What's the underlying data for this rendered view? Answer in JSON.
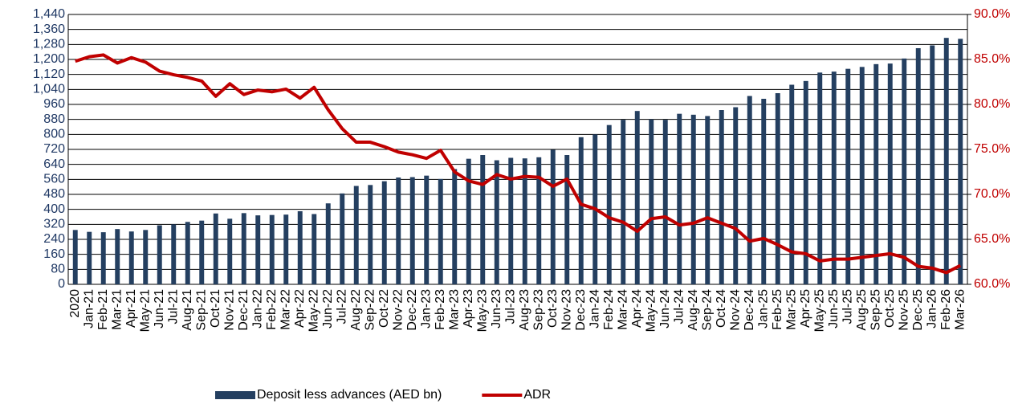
{
  "chart_data": {
    "type": "bar-line",
    "categories": [
      "2020",
      "Jan-21",
      "Feb-21",
      "Mar-21",
      "Apr-21",
      "May-21",
      "Jun-21",
      "Jul-21",
      "Aug-21",
      "Sep-21",
      "Oct-21",
      "Nov-21",
      "Dec-21",
      "Jan-22",
      "Feb-22",
      "Mar-22",
      "Apr-22",
      "May-22",
      "Jun-22",
      "Jul-22",
      "Aug-22",
      "Sep-22",
      "Oct-22",
      "Nov-22",
      "Dec-22",
      "Jan-23",
      "Feb-23",
      "Mar-23",
      "Apr-23",
      "May-23",
      "Jun-23",
      "Jul-23",
      "Aug-23",
      "Sep-23",
      "Oct-23",
      "Nov-23",
      "Dec-23",
      "Jan-24",
      "Feb-24",
      "Mar-24",
      "Apr-24",
      "May-24",
      "Jun-24",
      "Jul-24",
      "Aug-24",
      "Sep-24",
      "Oct-24",
      "Nov-24",
      "Dec-24",
      "Jan-25",
      "Feb-25",
      "Mar-25",
      "Apr-25",
      "May-25",
      "Jun-25",
      "Jul-25",
      "Aug-25",
      "Sep-25",
      "Oct-25",
      "Nov-25",
      "Dec-25",
      "Jan-26",
      "Feb-26",
      "Mar-26"
    ],
    "series": [
      {
        "name": "Deposit less advances (AED bn)",
        "type": "bar",
        "color": "#243f60",
        "values": [
          290,
          280,
          278,
          295,
          282,
          290,
          315,
          320,
          333,
          340,
          378,
          350,
          380,
          368,
          370,
          372,
          390,
          375,
          432,
          485,
          525,
          530,
          550,
          570,
          572,
          580,
          562,
          615,
          670,
          690,
          662,
          675,
          672,
          678,
          718,
          690,
          785,
          800,
          850,
          878,
          925,
          880,
          878,
          910,
          905,
          898,
          930,
          945,
          1005,
          990,
          1020,
          1065,
          1085,
          1130,
          1135,
          1150,
          1160,
          1175,
          1178,
          1205,
          1260,
          1275,
          1315,
          1310
        ]
      },
      {
        "name": "ADR",
        "type": "line",
        "axis": "y2",
        "color": "#c00000",
        "values": [
          84.8,
          85.3,
          85.5,
          84.6,
          85.2,
          84.7,
          83.7,
          83.3,
          83.0,
          82.6,
          80.9,
          82.3,
          81.1,
          81.6,
          81.4,
          81.7,
          80.7,
          81.9,
          79.4,
          77.3,
          75.8,
          75.8,
          75.3,
          74.7,
          74.4,
          74.0,
          74.9,
          72.5,
          71.5,
          71.1,
          72.2,
          71.7,
          72.0,
          71.9,
          70.9,
          71.7,
          68.9,
          68.4,
          67.4,
          66.9,
          65.9,
          67.3,
          67.5,
          66.6,
          66.8,
          67.4,
          66.8,
          66.2,
          64.8,
          65.1,
          64.4,
          63.6,
          63.4,
          62.6,
          62.8,
          62.8,
          63.0,
          63.2,
          63.4,
          63.0,
          62.0,
          61.8,
          61.3,
          62.1
        ]
      }
    ],
    "ylim": [
      0,
      1440
    ],
    "yticks": [
      0,
      80,
      160,
      240,
      320,
      400,
      480,
      560,
      640,
      720,
      800,
      880,
      960,
      {
        "value": 1040,
        "label": "1,040"
      },
      {
        "value": 1120,
        "label": "1,120"
      },
      {
        "value": 1200,
        "label": "1,200"
      },
      {
        "value": 1280,
        "label": "1,280"
      },
      {
        "value": 1360,
        "label": "1,360"
      },
      {
        "value": 1440,
        "label": "1,440"
      }
    ],
    "y2lim": [
      60,
      90
    ],
    "y2ticks": [
      {
        "value": 60,
        "label": "60.0%"
      },
      {
        "value": 65,
        "label": "65.0%"
      },
      {
        "value": 70,
        "label": "70.0%"
      },
      {
        "value": 75,
        "label": "75.0%"
      },
      {
        "value": 80,
        "label": "80.0%"
      },
      {
        "value": 85,
        "label": "85.0%"
      },
      {
        "value": 90,
        "label": "90.0%"
      }
    ],
    "grid": true,
    "legend": "bottom"
  }
}
